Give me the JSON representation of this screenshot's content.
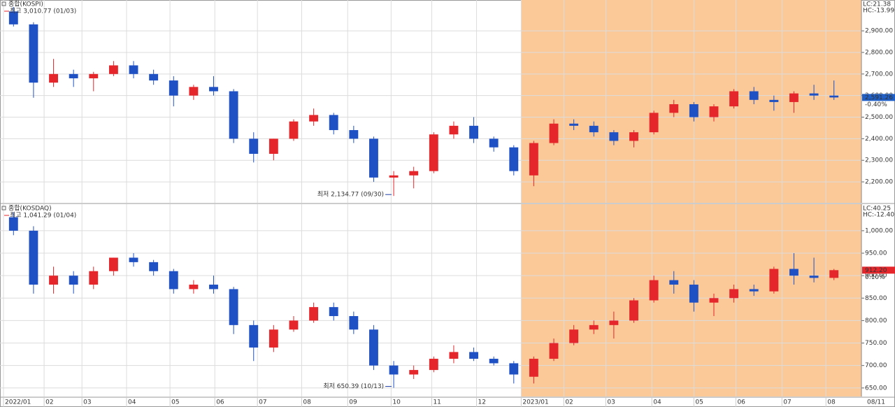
{
  "chart_data": [
    {
      "type": "candlestick",
      "title": "종합(KOSPI)",
      "high_note": "최고 3,010.77 (01/03)",
      "low_note": "최저 2,134.77 (09/30)",
      "lc": "LC:21.38",
      "hc": "HC:-13.99",
      "last_price": {
        "value": 2591.26,
        "label": "2,591.26"
      },
      "change": "-0.40%",
      "box_color": "#1f5fc6",
      "up_color": "#e5262b",
      "down_color": "#2051c4",
      "highlight": {
        "from": 25.37,
        "color": "#fbc997"
      },
      "xlim": [
        -0.5,
        41.5
      ],
      "ylim": [
        2103,
        3043
      ],
      "yticks": [
        {
          "value": 2200,
          "label": "2,200.00"
        },
        {
          "value": 2300,
          "label": "2,300.00"
        },
        {
          "value": 2400,
          "label": "2,400.00"
        },
        {
          "value": 2500,
          "label": "2,500.00"
        },
        {
          "value": 2600,
          "label": "2,600.00"
        },
        {
          "value": 2700,
          "label": "2,700.00"
        },
        {
          "value": 2800,
          "label": "2,800.00"
        },
        {
          "value": 2900,
          "label": "2,900.00"
        }
      ],
      "open": [
        2990,
        2930,
        2660,
        2700,
        2680,
        2700,
        2740,
        2700,
        2670,
        2600,
        2640,
        2620,
        2400,
        2330,
        2400,
        2480,
        2510,
        2440,
        2400,
        2220,
        2230,
        2250,
        2420,
        2460,
        2400,
        2360,
        2230,
        2380,
        2470,
        2460,
        2430,
        2390,
        2430,
        2520,
        2560,
        2500,
        2550,
        2620,
        2580,
        2570,
        2610,
        2600
      ],
      "high": [
        3010.77,
        2940,
        2770,
        2720,
        2710,
        2760,
        2760,
        2720,
        2690,
        2650,
        2690,
        2630,
        2430,
        2400,
        2490,
        2540,
        2520,
        2460,
        2410,
        2250,
        2270,
        2430,
        2480,
        2500,
        2410,
        2370,
        2390,
        2490,
        2490,
        2480,
        2440,
        2440,
        2530,
        2580,
        2570,
        2560,
        2630,
        2640,
        2600,
        2620,
        2650,
        2670
      ],
      "low": [
        2920,
        2590,
        2640,
        2640,
        2620,
        2690,
        2680,
        2650,
        2550,
        2580,
        2600,
        2380,
        2290,
        2300,
        2390,
        2460,
        2420,
        2380,
        2200,
        2134.77,
        2170,
        2240,
        2400,
        2380,
        2340,
        2230,
        2180,
        2370,
        2440,
        2410,
        2370,
        2360,
        2420,
        2500,
        2480,
        2480,
        2540,
        2560,
        2530,
        2520,
        2580,
        2580
      ],
      "close": [
        2930,
        2660,
        2700,
        2680,
        2700,
        2740,
        2700,
        2670,
        2600,
        2640,
        2620,
        2400,
        2330,
        2400,
        2480,
        2510,
        2440,
        2400,
        2220,
        2230,
        2250,
        2420,
        2460,
        2400,
        2360,
        2250,
        2380,
        2470,
        2460,
        2430,
        2390,
        2430,
        2520,
        2560,
        2500,
        2550,
        2620,
        2580,
        2570,
        2610,
        2600,
        2591.26
      ]
    },
    {
      "type": "candlestick",
      "title": "종합(KOSDAQ)",
      "high_note": "최고 1,041.29 (01/04)",
      "low_note": "최저 650.39 (10/13)",
      "lc": "LC:40.25",
      "hc": "HC:-12.40",
      "last_price": {
        "value": 912.2,
        "label": "912.20"
      },
      "change": "0.10%",
      "box_color": "#e5262b",
      "up_color": "#e5262b",
      "down_color": "#2051c4",
      "highlight": {
        "from": 25.37,
        "color": "#fbc997"
      },
      "xlim": [
        -0.5,
        41.5
      ],
      "ylim": [
        631,
        1059
      ],
      "yticks": [
        {
          "value": 650,
          "label": "650.00"
        },
        {
          "value": 700,
          "label": "700.00"
        },
        {
          "value": 750,
          "label": "750.00"
        },
        {
          "value": 800,
          "label": "800.00"
        },
        {
          "value": 850,
          "label": "850.00"
        },
        {
          "value": 900,
          "label": "900.00"
        },
        {
          "value": 950,
          "label": "950.00"
        },
        {
          "value": 1000,
          "label": "1,000.00"
        }
      ],
      "xticks": [
        {
          "value": -0.5,
          "label": "2022/01"
        },
        {
          "value": 1.53,
          "label": "02"
        },
        {
          "value": 3.42,
          "label": "03"
        },
        {
          "value": 5.65,
          "label": "04"
        },
        {
          "value": 7.82,
          "label": "05"
        },
        {
          "value": 10.06,
          "label": "06"
        },
        {
          "value": 12.19,
          "label": "07"
        },
        {
          "value": 14.4,
          "label": "08"
        },
        {
          "value": 16.7,
          "label": "09"
        },
        {
          "value": 18.87,
          "label": "10"
        },
        {
          "value": 20.9,
          "label": "11"
        },
        {
          "value": 23.14,
          "label": "12"
        },
        {
          "value": 25.37,
          "label": "2023/01"
        },
        {
          "value": 27.5,
          "label": "02"
        },
        {
          "value": 29.6,
          "label": "03"
        },
        {
          "value": 31.9,
          "label": "04"
        },
        {
          "value": 34.0,
          "label": "05"
        },
        {
          "value": 36.1,
          "label": "06"
        },
        {
          "value": 38.4,
          "label": "07"
        },
        {
          "value": 40.6,
          "label": "08"
        }
      ],
      "last_date": "08/11",
      "open": [
        1030,
        1000,
        880,
        900,
        880,
        910,
        940,
        930,
        910,
        870,
        880,
        870,
        790,
        740,
        780,
        800,
        830,
        810,
        780,
        700,
        680,
        690,
        715,
        730,
        715,
        705,
        675,
        715,
        750,
        780,
        790,
        800,
        845,
        890,
        880,
        840,
        850,
        870,
        865,
        915,
        900,
        895
      ],
      "high": [
        1041.29,
        1010,
        920,
        910,
        920,
        940,
        950,
        935,
        915,
        890,
        900,
        875,
        800,
        790,
        810,
        840,
        840,
        820,
        790,
        710,
        700,
        720,
        745,
        740,
        720,
        710,
        720,
        760,
        790,
        800,
        820,
        850,
        900,
        910,
        890,
        860,
        880,
        880,
        920,
        950,
        940,
        915
      ],
      "low": [
        990,
        860,
        860,
        860,
        870,
        900,
        920,
        900,
        860,
        860,
        860,
        770,
        710,
        730,
        775,
        795,
        800,
        770,
        690,
        650.39,
        670,
        685,
        705,
        710,
        700,
        660,
        660,
        710,
        745,
        770,
        760,
        795,
        840,
        860,
        820,
        810,
        840,
        855,
        860,
        880,
        885,
        890
      ],
      "close": [
        1000,
        880,
        900,
        880,
        910,
        940,
        930,
        910,
        870,
        880,
        870,
        790,
        740,
        780,
        800,
        830,
        810,
        780,
        700,
        680,
        690,
        715,
        730,
        715,
        705,
        680,
        715,
        750,
        780,
        790,
        800,
        845,
        890,
        880,
        840,
        850,
        870,
        865,
        915,
        900,
        895,
        912.2
      ]
    }
  ]
}
